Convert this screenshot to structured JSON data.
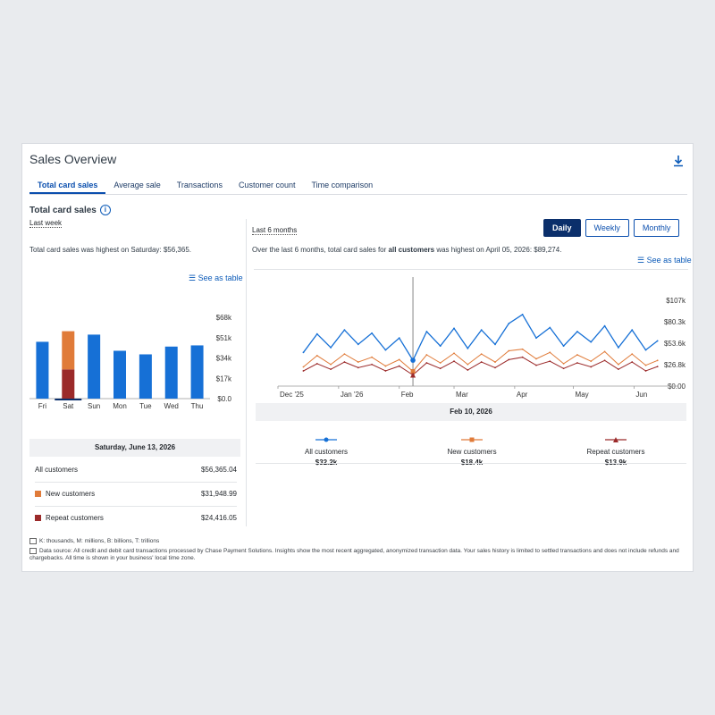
{
  "panel": {
    "title": "Sales Overview",
    "tabs": [
      "Total card sales",
      "Average sale",
      "Transactions",
      "Customer count",
      "Time comparison"
    ],
    "active_tab": "Total card sales",
    "section_title": "Total card sales"
  },
  "left": {
    "period_label": "Last week",
    "summary": "Total card sales was highest on Saturday: $56,365.",
    "see_as_table": "See as table",
    "selected_date": "Saturday, June 13, 2026",
    "breakdown": [
      {
        "label": "All customers",
        "value": "$56,365.04"
      },
      {
        "label": "New customers",
        "value": "$31,948.99"
      },
      {
        "label": "Repeat customers",
        "value": "$24,416.05"
      }
    ]
  },
  "right": {
    "period_label": "Last 6 months",
    "granularity": [
      "Daily",
      "Weekly",
      "Monthly"
    ],
    "active_granularity": "Daily",
    "summary_prefix": "Over the last 6 months, total card sales for ",
    "summary_bold": "all customers",
    "summary_suffix": " was highest on April 05, 2026: $89,274.",
    "see_as_table": "See as table",
    "hover_date": "Feb 10, 2026",
    "legend": [
      {
        "label": "All customers",
        "value": "$32.2k"
      },
      {
        "label": "New customers",
        "value": "$18.4k"
      },
      {
        "label": "Repeat customers",
        "value": "$13.9k"
      }
    ]
  },
  "footer": {
    "abbrev": "K: thousands, M: millions, B: billions, T: trillions",
    "source": "Data source: All credit and debit card transactions processed by Chase Payment Solutions. Insights show the most recent aggregated, anonymized transaction data. Your sales history is limited to settled transactions and does not include refunds and chargebacks. All time is shown in your business' local time zone."
  },
  "colors": {
    "all": "#1670d6",
    "new": "#e07b39",
    "repeat": "#9b2a2a",
    "accent": "#0b4fae"
  },
  "chart_data": [
    {
      "type": "bar",
      "categories": [
        "Fri",
        "Sat",
        "Sun",
        "Mon",
        "Tue",
        "Wed",
        "Thu"
      ],
      "series": [
        {
          "name": "All customers",
          "values": [
            47500,
            null,
            53500,
            40000,
            37000,
            43500,
            44500
          ]
        },
        {
          "name": "New customers",
          "values": [
            null,
            31948.99,
            null,
            null,
            null,
            null,
            null
          ]
        },
        {
          "name": "Repeat customers",
          "values": [
            null,
            24416.05,
            null,
            null,
            null,
            null,
            null
          ]
        }
      ],
      "yticks": [
        "$0.0",
        "$17k",
        "$34k",
        "$51k",
        "$68k"
      ],
      "ylim": [
        0,
        68000
      ]
    },
    {
      "type": "line",
      "x_ticks": [
        "Dec '25",
        "Jan '26",
        "Feb",
        "Mar",
        "Apr",
        "May",
        "Jun"
      ],
      "yticks": [
        "$0.00",
        "$26.8k",
        "$53.6k",
        "$80.3k",
        "$107k"
      ],
      "ylim": [
        0,
        107000
      ],
      "x": [
        "2025-12-14",
        "2025-12-21",
        "2025-12-28",
        "2026-01-04",
        "2026-01-11",
        "2026-01-18",
        "2026-01-25",
        "2026-02-01",
        "2026-02-08",
        "2026-02-15",
        "2026-02-22",
        "2026-03-01",
        "2026-03-08",
        "2026-03-15",
        "2026-03-22",
        "2026-03-29",
        "2026-04-05",
        "2026-04-12",
        "2026-04-19",
        "2026-04-26",
        "2026-05-03",
        "2026-05-10",
        "2026-05-17",
        "2026-05-24",
        "2026-05-31",
        "2026-06-07",
        "2026-06-13"
      ],
      "series": [
        {
          "name": "All customers",
          "values": [
            42000,
            65000,
            48000,
            70000,
            52000,
            66000,
            45000,
            60000,
            32200,
            68000,
            50000,
            72000,
            47000,
            70000,
            52000,
            78000,
            89274,
            60000,
            73000,
            50000,
            68000,
            55000,
            75000,
            48000,
            70000,
            45000,
            56365
          ]
        },
        {
          "name": "New customers",
          "values": [
            24000,
            38000,
            27000,
            40000,
            30000,
            36000,
            25000,
            33000,
            18400,
            39000,
            29000,
            41000,
            27000,
            40000,
            30000,
            44000,
            46000,
            34000,
            42000,
            28000,
            39000,
            31000,
            43000,
            27000,
            40000,
            26000,
            31949
          ]
        },
        {
          "name": "Repeat customers",
          "values": [
            19000,
            28000,
            21000,
            30000,
            23000,
            27000,
            19000,
            25000,
            13900,
            29000,
            22000,
            31000,
            20000,
            30000,
            23000,
            33000,
            36000,
            26000,
            31000,
            22000,
            29000,
            24000,
            32000,
            21000,
            30000,
            19000,
            24416
          ]
        }
      ]
    }
  ]
}
